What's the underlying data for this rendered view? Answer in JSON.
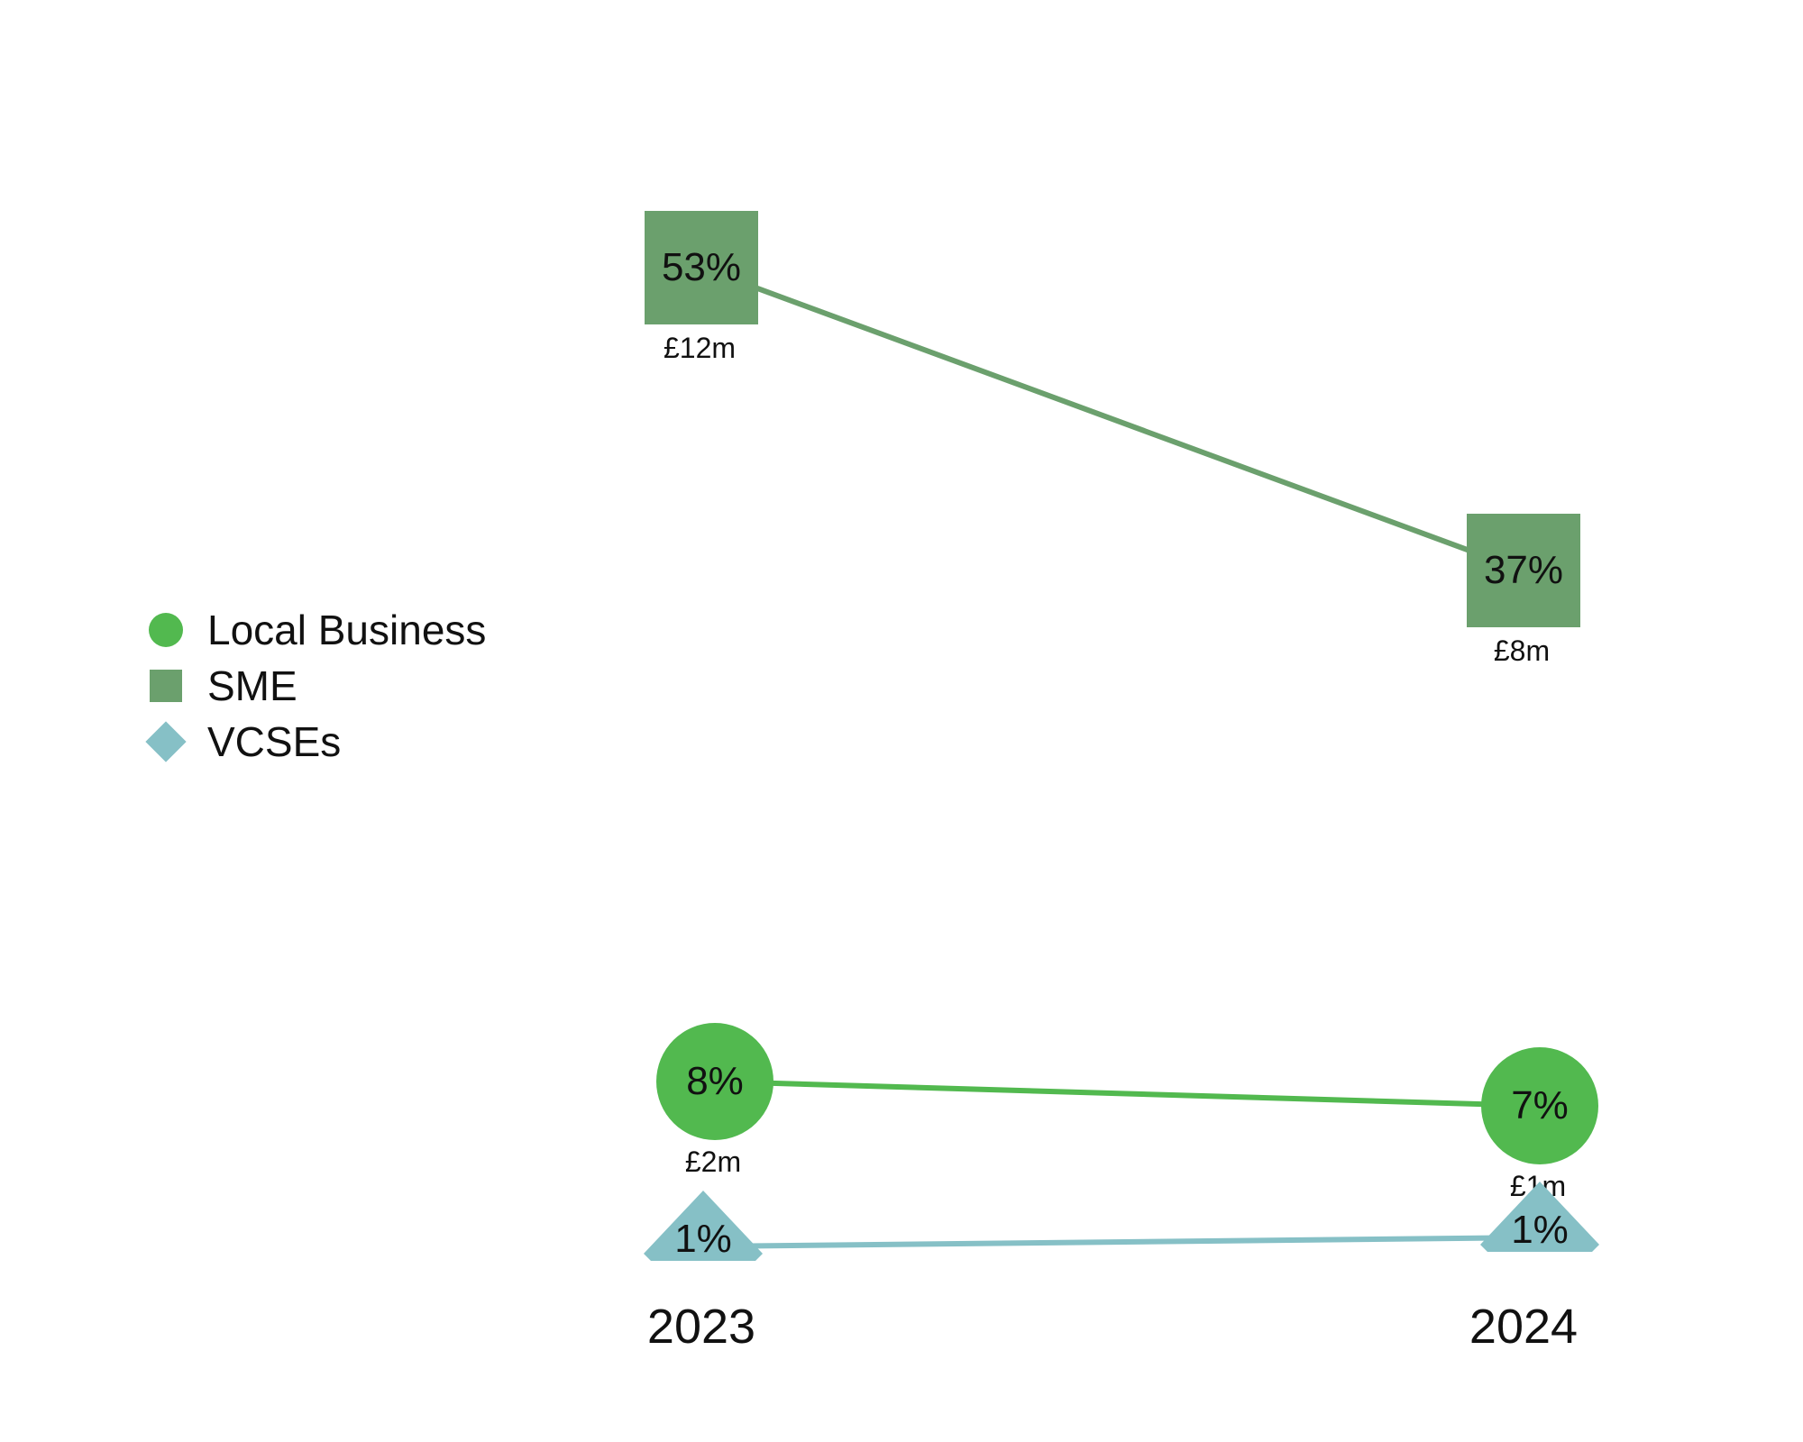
{
  "chart_data": {
    "type": "line",
    "x": [
      "2023",
      "2024"
    ],
    "series": [
      {
        "name": "Local Business",
        "marker": "circle",
        "color": "#52b94f",
        "values": [
          8,
          7
        ],
        "labels": [
          "8%",
          "7%"
        ],
        "amounts": [
          "£2m",
          "£1m"
        ]
      },
      {
        "name": "SME",
        "marker": "square",
        "color": "#6ba06d",
        "values": [
          53,
          37
        ],
        "labels": [
          "53%",
          "37%"
        ],
        "amounts": [
          "£12m",
          "£8m"
        ]
      },
      {
        "name": "VCSEs",
        "marker": "diamond",
        "color": "#86c0c6",
        "values": [
          1,
          1
        ],
        "labels": [
          "1%",
          "1%"
        ],
        "amounts": []
      }
    ],
    "legend_position": "left",
    "grid": false
  }
}
